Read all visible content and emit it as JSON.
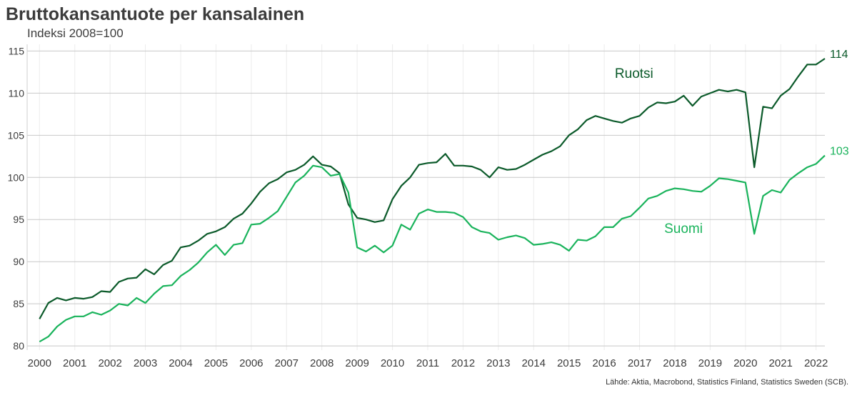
{
  "header": {
    "title": "Bruttokansantuote per kansalainen",
    "subtitle": "Indeksi 2008=100"
  },
  "footer": {
    "source": "Lähde: Aktia, Macrobond, Statistics Finland, Statistics Sweden (SCB)."
  },
  "chart_data": {
    "type": "line",
    "title": "Bruttokansantuote per kansalainen",
    "subtitle": "Indeksi 2008=100",
    "xlabel": "",
    "ylabel": "",
    "ylim": [
      79.5,
      115.8
    ],
    "xlim": [
      1999.65,
      2022.25
    ],
    "yticks": [
      "80",
      "85",
      "90",
      "95",
      "100",
      "105",
      "110",
      "115"
    ],
    "xticks": [
      "2000",
      "2001",
      "2002",
      "2003",
      "2004",
      "2005",
      "2006",
      "2007",
      "2008",
      "2009",
      "2010",
      "2011",
      "2012",
      "2013",
      "2014",
      "2015",
      "2016",
      "2017",
      "2018",
      "2019",
      "2020",
      "2021",
      "2022"
    ],
    "grid": true,
    "x_start": 2000.0,
    "x_step": 0.25,
    "series": [
      {
        "name": "Ruotsi",
        "color": "#0b5a2a",
        "end_label": "114",
        "values": [
          83.2,
          85.1,
          85.7,
          85.4,
          85.7,
          85.6,
          85.8,
          86.5,
          86.4,
          87.6,
          88.0,
          88.1,
          89.1,
          88.5,
          89.6,
          90.1,
          91.7,
          91.9,
          92.5,
          93.3,
          93.6,
          94.1,
          95.1,
          95.7,
          96.9,
          98.3,
          99.3,
          99.8,
          100.6,
          100.9,
          101.5,
          102.5,
          101.5,
          101.3,
          100.5,
          96.8,
          95.2,
          95.0,
          94.7,
          94.9,
          97.4,
          99.0,
          100.0,
          101.5,
          101.7,
          101.8,
          102.8,
          101.4,
          101.4,
          101.3,
          100.9,
          100.0,
          101.2,
          100.9,
          101.0,
          101.5,
          102.1,
          102.7,
          103.1,
          103.7,
          105.0,
          105.7,
          106.8,
          107.3,
          107.0,
          106.7,
          106.5,
          107.0,
          107.3,
          108.3,
          108.9,
          108.8,
          109.0,
          109.7,
          108.5,
          109.6,
          110.0,
          110.4,
          110.2,
          110.4,
          110.1,
          101.2,
          108.4,
          108.2,
          109.7,
          110.5,
          112.0,
          113.4,
          113.4,
          114.1
        ]
      },
      {
        "name": "Suomi",
        "color": "#19b35b",
        "end_label": "103",
        "values": [
          80.5,
          81.1,
          82.3,
          83.1,
          83.5,
          83.5,
          84.0,
          83.7,
          84.2,
          85.0,
          84.8,
          85.7,
          85.1,
          86.2,
          87.1,
          87.2,
          88.3,
          89.0,
          89.9,
          91.1,
          92.0,
          90.8,
          92.0,
          92.2,
          94.4,
          94.5,
          95.2,
          96.0,
          97.7,
          99.4,
          100.2,
          101.4,
          101.2,
          100.2,
          100.4,
          98.2,
          91.7,
          91.2,
          91.9,
          91.1,
          91.9,
          94.4,
          93.8,
          95.7,
          96.2,
          95.9,
          95.9,
          95.8,
          95.3,
          94.1,
          93.6,
          93.4,
          92.6,
          92.9,
          93.1,
          92.8,
          92.0,
          92.1,
          92.3,
          92.0,
          91.3,
          92.6,
          92.5,
          93.0,
          94.1,
          94.1,
          95.1,
          95.4,
          96.4,
          97.5,
          97.8,
          98.4,
          98.7,
          98.6,
          98.4,
          98.3,
          99.0,
          99.9,
          99.8,
          99.6,
          99.4,
          93.3,
          97.8,
          98.5,
          98.2,
          99.7,
          100.5,
          101.2,
          101.6,
          102.6
        ]
      }
    ]
  }
}
